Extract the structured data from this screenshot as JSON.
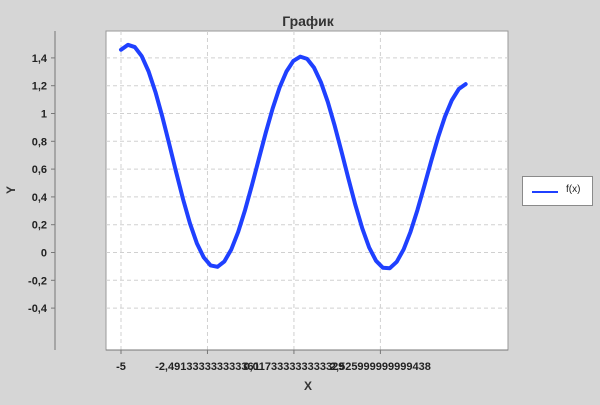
{
  "chart_data": {
    "type": "line",
    "title": "График",
    "xlabel": "X",
    "ylabel": "Y",
    "xlim": [
      -5.0,
      5.3
    ],
    "ylim": [
      -0.5,
      1.5
    ],
    "y_ticks": [
      "1,4",
      "1,2",
      "1",
      "0,8",
      "0,6",
      "0,4",
      "0,2",
      "0",
      "-0,2",
      "-0,4"
    ],
    "y_tick_values": [
      1.4,
      1.2,
      1.0,
      0.8,
      0.6,
      0.4,
      0.2,
      0.0,
      -0.2,
      -0.4
    ],
    "x_ticks": [
      "-5",
      "-2,491333333333361",
      "0,017333333333329",
      "2,525999999999438"
    ],
    "x_tick_values": [
      -5.0,
      -2.491333333333361,
      0.017333333333329,
      2.525999999999438
    ],
    "grid": true,
    "legend_position": "right",
    "series": [
      {
        "name": "f(x)",
        "color": "#1f40ff",
        "x": [
          -5.0,
          -4.8,
          -4.6,
          -4.4,
          -4.2,
          -4.0,
          -3.8,
          -3.6,
          -3.4,
          -3.2,
          -3.0,
          -2.8,
          -2.6,
          -2.4,
          -2.2,
          -2.0,
          -1.8,
          -1.6,
          -1.4,
          -1.2,
          -1.0,
          -0.8,
          -0.6,
          -0.4,
          -0.2,
          0.0,
          0.2,
          0.4,
          0.6,
          0.8,
          1.0,
          1.2,
          1.4,
          1.6,
          1.8,
          2.0,
          2.2,
          2.4,
          2.6,
          2.8,
          3.0,
          3.2,
          3.4,
          3.6,
          3.8,
          4.0,
          4.2,
          4.4,
          4.6,
          4.8,
          5.0
        ],
        "y": [
          1.459,
          1.494,
          1.478,
          1.413,
          1.303,
          1.154,
          0.976,
          0.78,
          0.578,
          0.384,
          0.21,
          0.067,
          -0.035,
          -0.093,
          -0.103,
          -0.064,
          0.022,
          0.148,
          0.306,
          0.485,
          0.674,
          0.862,
          1.036,
          1.186,
          1.302,
          1.378,
          1.409,
          1.393,
          1.33,
          1.225,
          1.083,
          0.912,
          0.724,
          0.53,
          0.342,
          0.174,
          0.036,
          -0.06,
          -0.11,
          -0.113,
          -0.067,
          0.022,
          0.149,
          0.305,
          0.479,
          0.658,
          0.828,
          0.978,
          1.096,
          1.176,
          1.211
        ]
      }
    ]
  }
}
